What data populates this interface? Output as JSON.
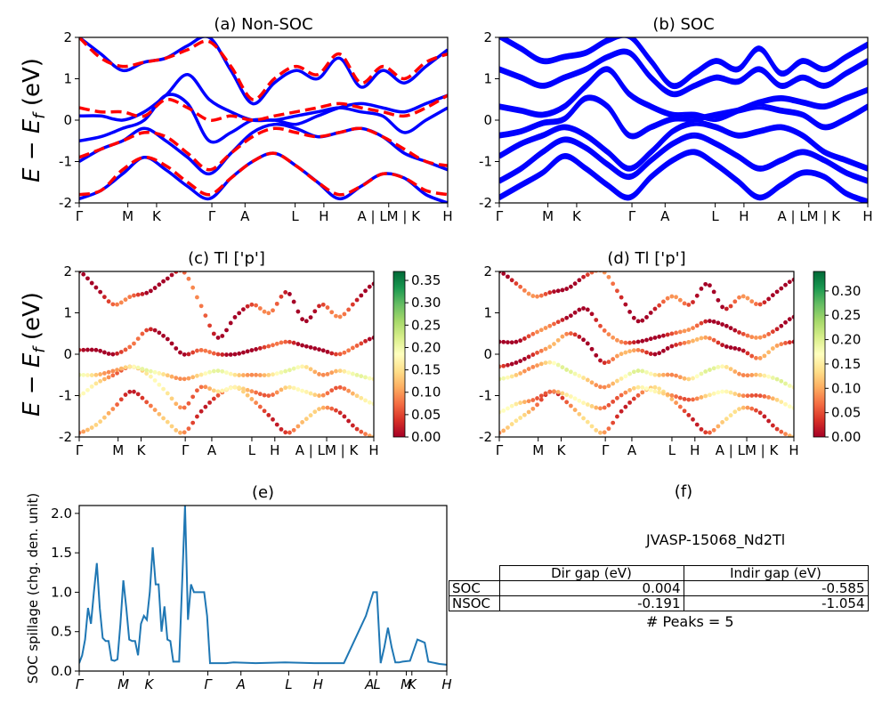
{
  "chart_data": [
    {
      "id": "a",
      "type": "line",
      "title": "(a) Non-SOC",
      "ylabel": "E − E_f (eV)",
      "ylim": [
        -2,
        2
      ],
      "yticks": [
        -2,
        -1,
        0,
        1,
        2
      ],
      "kpath": [
        "Γ",
        "M",
        "K",
        "Γ",
        "A",
        "L",
        "H",
        "A | LM | K",
        "H"
      ],
      "series": [
        {
          "color": "#0000ff",
          "style": "solid",
          "bands": [
            [
              -1.9,
              -1.7,
              -1.3,
              -0.9,
              -1.2,
              -1.6,
              -1.9,
              -1.4,
              -1.0,
              -0.8,
              -1.1,
              -1.5,
              -1.9,
              -1.6,
              -1.3,
              -1.4,
              -1.8,
              -2.0
            ],
            [
              -1.0,
              -0.7,
              -0.5,
              -0.2,
              -0.5,
              -0.9,
              -1.3,
              -0.8,
              -0.3,
              -0.1,
              -0.2,
              -0.4,
              -0.3,
              -0.2,
              -0.4,
              -0.8,
              -1.0,
              -1.2
            ],
            [
              -0.5,
              -0.4,
              -0.2,
              0.0,
              0.6,
              0.4,
              -0.5,
              -0.3,
              0.0,
              0.0,
              0.1,
              0.2,
              0.3,
              0.2,
              0.1,
              -0.3,
              0.0,
              0.3
            ],
            [
              0.1,
              0.1,
              0.0,
              0.2,
              0.6,
              1.1,
              0.5,
              0.2,
              0.0,
              0.0,
              -0.1,
              0.1,
              0.3,
              0.4,
              0.3,
              0.2,
              0.4,
              0.6
            ],
            [
              2.0,
              1.6,
              1.2,
              1.4,
              1.5,
              1.8,
              2.0,
              1.2,
              0.4,
              0.9,
              1.2,
              1.0,
              1.5,
              0.8,
              1.2,
              0.9,
              1.3,
              1.7
            ]
          ]
        },
        {
          "color": "#ff0000",
          "style": "dashed",
          "bands": [
            [
              -1.8,
              -1.7,
              -1.2,
              -0.9,
              -1.1,
              -1.5,
              -1.8,
              -1.4,
              -1.0,
              -0.8,
              -1.1,
              -1.5,
              -1.8,
              -1.6,
              -1.3,
              -1.4,
              -1.7,
              -1.8
            ],
            [
              -0.9,
              -0.7,
              -0.5,
              -0.3,
              -0.4,
              -0.8,
              -1.2,
              -0.8,
              -0.4,
              -0.2,
              -0.3,
              -0.4,
              -0.3,
              -0.2,
              -0.4,
              -0.7,
              -1.0,
              -1.1
            ],
            [
              0.3,
              0.2,
              0.2,
              0.1,
              0.5,
              0.3,
              0.0,
              0.1,
              0.0,
              0.1,
              0.2,
              0.3,
              0.4,
              0.3,
              0.2,
              0.1,
              0.3,
              0.6
            ],
            [
              2.0,
              1.5,
              1.3,
              1.4,
              1.5,
              1.7,
              1.9,
              1.3,
              0.5,
              1.0,
              1.3,
              1.1,
              1.6,
              0.9,
              1.3,
              1.0,
              1.4,
              1.6
            ]
          ]
        }
      ]
    },
    {
      "id": "b",
      "type": "line",
      "title": "(b) SOC",
      "ylim": [
        -2,
        2
      ],
      "yticks": [
        -2,
        -1,
        0,
        1,
        2
      ],
      "kpath": [
        "Γ",
        "M",
        "K",
        "Γ",
        "A",
        "L",
        "H",
        "A | LM | K",
        "H"
      ],
      "series": [
        {
          "color": "#0000ff",
          "style": "solid",
          "bands": [
            [
              -1.9,
              -1.6,
              -1.3,
              -0.9,
              -1.2,
              -1.6,
              -1.9,
              -1.4,
              -1.0,
              -0.8,
              -1.1,
              -1.5,
              -1.9,
              -1.6,
              -1.3,
              -1.4,
              -1.8,
              -2.0
            ],
            [
              -1.5,
              -1.2,
              -0.8,
              -0.5,
              -0.7,
              -1.1,
              -1.4,
              -1.0,
              -0.6,
              -0.4,
              -0.6,
              -0.9,
              -1.2,
              -1.0,
              -0.8,
              -1.0,
              -1.3,
              -1.5
            ],
            [
              -0.9,
              -0.6,
              -0.4,
              -0.2,
              -0.4,
              -0.8,
              -1.2,
              -0.8,
              -0.3,
              -0.1,
              -0.2,
              -0.4,
              -0.3,
              -0.2,
              -0.4,
              -0.8,
              -1.0,
              -1.2
            ],
            [
              -0.4,
              -0.3,
              -0.1,
              0.0,
              0.5,
              0.3,
              -0.4,
              -0.2,
              0.0,
              0.0,
              0.1,
              0.2,
              0.3,
              0.2,
              0.1,
              -0.2,
              0.0,
              0.3
            ],
            [
              0.3,
              0.2,
              0.1,
              0.3,
              0.8,
              1.2,
              0.6,
              0.3,
              0.1,
              0.1,
              0.0,
              0.2,
              0.4,
              0.5,
              0.4,
              0.3,
              0.5,
              0.7
            ],
            [
              1.2,
              1.0,
              0.8,
              1.0,
              1.2,
              1.5,
              1.6,
              1.0,
              0.6,
              0.8,
              1.0,
              0.9,
              1.2,
              0.8,
              1.0,
              0.8,
              1.1,
              1.4
            ],
            [
              2.0,
              1.7,
              1.4,
              1.5,
              1.6,
              1.9,
              2.0,
              1.4,
              0.8,
              1.1,
              1.4,
              1.2,
              1.7,
              1.1,
              1.4,
              1.2,
              1.5,
              1.8
            ]
          ]
        }
      ]
    },
    {
      "id": "c",
      "type": "scatter",
      "title": "(c)  Tl ['p']",
      "ylabel": "E − E_f (eV)",
      "ylim": [
        -2,
        2
      ],
      "yticks": [
        -2,
        -1,
        0,
        1,
        2
      ],
      "kpath": [
        "Γ",
        "M",
        "K",
        "Γ",
        "A",
        "L",
        "H",
        "A | LM | K",
        "H"
      ],
      "colorbar": {
        "ticks": [
          "0.00",
          "0.05",
          "0.10",
          "0.15",
          "0.20",
          "0.25",
          "0.30",
          "0.35"
        ],
        "max": 0.37
      },
      "bands": [
        {
          "weight": 0.08,
          "values": [
            -1.9,
            -1.7,
            -1.3,
            -0.9,
            -1.2,
            -1.6,
            -1.9,
            -1.4,
            -1.0,
            -0.8,
            -1.1,
            -1.5,
            -1.9,
            -1.6,
            -1.3,
            -1.4,
            -1.8,
            -2.0
          ]
        },
        {
          "weight": 0.12,
          "values": [
            -1.0,
            -0.7,
            -0.5,
            -0.3,
            -0.5,
            -0.9,
            -1.3,
            -0.8,
            -0.9,
            -0.8,
            -0.9,
            -1.0,
            -0.8,
            -0.9,
            -1.0,
            -0.8,
            -1.0,
            -1.2
          ]
        },
        {
          "weight": 0.15,
          "values": [
            -0.5,
            -0.5,
            -0.4,
            -0.3,
            -0.4,
            -0.5,
            -0.6,
            -0.5,
            -0.4,
            -0.5,
            -0.5,
            -0.5,
            -0.4,
            -0.3,
            -0.5,
            -0.4,
            -0.5,
            -0.6
          ]
        },
        {
          "weight": 0.02,
          "values": [
            0.1,
            0.1,
            0.0,
            0.2,
            0.6,
            0.4,
            0.0,
            0.1,
            0.0,
            0.0,
            0.1,
            0.2,
            0.3,
            0.2,
            0.1,
            0.0,
            0.2,
            0.4
          ]
        },
        {
          "weight": 0.03,
          "values": [
            2.0,
            1.6,
            1.2,
            1.4,
            1.5,
            1.8,
            2.0,
            1.2,
            0.4,
            0.9,
            1.2,
            1.0,
            1.5,
            0.8,
            1.2,
            0.9,
            1.3,
            1.7
          ]
        }
      ]
    },
    {
      "id": "d",
      "type": "scatter",
      "title": "(d) Tl ['p']",
      "ylim": [
        -2,
        2
      ],
      "yticks": [
        -2,
        -1,
        0,
        1,
        2
      ],
      "kpath": [
        "Γ",
        "M",
        "K",
        "Γ",
        "A",
        "L",
        "H",
        "A | LM | K",
        "H"
      ],
      "colorbar": {
        "ticks": [
          "0.00",
          "0.05",
          "0.10",
          "0.15",
          "0.20",
          "0.25",
          "0.30"
        ],
        "max": 0.34
      },
      "bands": [
        {
          "weight": 0.08,
          "values": [
            -1.9,
            -1.6,
            -1.3,
            -0.9,
            -1.2,
            -1.6,
            -1.9,
            -1.4,
            -1.0,
            -0.8,
            -1.1,
            -1.5,
            -1.9,
            -1.6,
            -1.3,
            -1.4,
            -1.8,
            -2.0
          ]
        },
        {
          "weight": 0.11,
          "values": [
            -1.4,
            -1.2,
            -1.1,
            -0.9,
            -1.0,
            -1.2,
            -1.3,
            -1.0,
            -0.8,
            -0.9,
            -1.0,
            -1.1,
            -1.0,
            -0.9,
            -1.0,
            -1.0,
            -1.1,
            -1.3
          ]
        },
        {
          "weight": 0.14,
          "values": [
            -0.6,
            -0.5,
            -0.3,
            -0.2,
            -0.4,
            -0.6,
            -0.8,
            -0.6,
            -0.4,
            -0.5,
            -0.5,
            -0.6,
            -0.4,
            -0.3,
            -0.5,
            -0.5,
            -0.6,
            -0.8
          ]
        },
        {
          "weight": 0.05,
          "values": [
            -0.3,
            -0.2,
            0.0,
            0.2,
            0.5,
            0.3,
            -0.2,
            0.0,
            0.1,
            0.0,
            0.2,
            0.3,
            0.4,
            0.2,
            0.1,
            -0.1,
            0.2,
            0.3
          ]
        },
        {
          "weight": 0.03,
          "values": [
            0.3,
            0.3,
            0.5,
            0.7,
            0.9,
            1.1,
            0.6,
            0.3,
            0.3,
            0.4,
            0.5,
            0.6,
            0.8,
            0.7,
            0.5,
            0.4,
            0.6,
            0.9
          ]
        },
        {
          "weight": 0.03,
          "values": [
            2.0,
            1.7,
            1.4,
            1.5,
            1.6,
            1.9,
            2.0,
            1.4,
            0.8,
            1.1,
            1.4,
            1.2,
            1.7,
            1.1,
            1.4,
            1.2,
            1.5,
            1.8
          ]
        }
      ]
    },
    {
      "id": "e",
      "type": "line",
      "title": "(e)",
      "ylabel": "SOC spillage (chg. den. unit)",
      "ylim": [
        0,
        2.1
      ],
      "yticks": [
        "0.0",
        "0.5",
        "1.0",
        "1.5",
        "2.0"
      ],
      "kpath": [
        "Γ",
        "M",
        "K",
        "Γ",
        "A",
        "L",
        "H",
        "A",
        "L",
        "M",
        "K",
        "H"
      ],
      "x": [
        0,
        0.008,
        0.016,
        0.024,
        0.032,
        0.04,
        0.048,
        0.056,
        0.064,
        0.072,
        0.08,
        0.088,
        0.096,
        0.104,
        0.112,
        0.12,
        0.128,
        0.136,
        0.144,
        0.152,
        0.16,
        0.168,
        0.176,
        0.184,
        0.192,
        0.2,
        0.208,
        0.216,
        0.224,
        0.232,
        0.24,
        0.248,
        0.256,
        0.264,
        0.272,
        0.28,
        0.288,
        0.296,
        0.304,
        0.312,
        0.32,
        0.33,
        0.34,
        0.348,
        0.356,
        0.364,
        0.372,
        0.38,
        0.39,
        0.4,
        0.42,
        0.48,
        0.56,
        0.64,
        0.72,
        0.78,
        0.8,
        0.81,
        0.82,
        0.83,
        0.84,
        0.85,
        0.86,
        0.87,
        0.88,
        0.9,
        0.92,
        0.93,
        0.94,
        0.95,
        0.96,
        0.97,
        0.98,
        1.0
      ],
      "values": [
        0.1,
        0.2,
        0.4,
        0.8,
        0.6,
        1.0,
        1.37,
        0.8,
        0.42,
        0.38,
        0.38,
        0.14,
        0.13,
        0.15,
        0.6,
        1.15,
        0.8,
        0.4,
        0.38,
        0.38,
        0.2,
        0.6,
        0.7,
        0.65,
        1.0,
        1.57,
        1.1,
        1.1,
        0.5,
        0.82,
        0.4,
        0.38,
        0.12,
        0.12,
        0.12,
        1.1,
        2.1,
        0.65,
        1.1,
        1.0,
        1.0,
        1.0,
        1.0,
        0.7,
        0.1,
        0.1,
        0.1,
        0.1,
        0.1,
        0.1,
        0.11,
        0.1,
        0.11,
        0.1,
        0.1,
        0.7,
        1.0,
        1.0,
        0.1,
        0.3,
        0.55,
        0.3,
        0.11,
        0.11,
        0.12,
        0.13,
        0.4,
        0.38,
        0.36,
        0.12,
        0.11,
        0.1,
        0.09,
        0.08
      ]
    }
  ],
  "info": {
    "title": "(f)",
    "material_id": "JVASP-15068_Nd2Tl",
    "table": {
      "headers": [
        "",
        "Dir gap (eV)",
        "Indir gap (eV)"
      ],
      "rows": [
        [
          "SOC",
          "0.004",
          "-0.585"
        ],
        [
          "NSOC",
          "-0.191",
          "-1.054"
        ]
      ]
    },
    "peaks_text": "# Peaks = 5"
  }
}
